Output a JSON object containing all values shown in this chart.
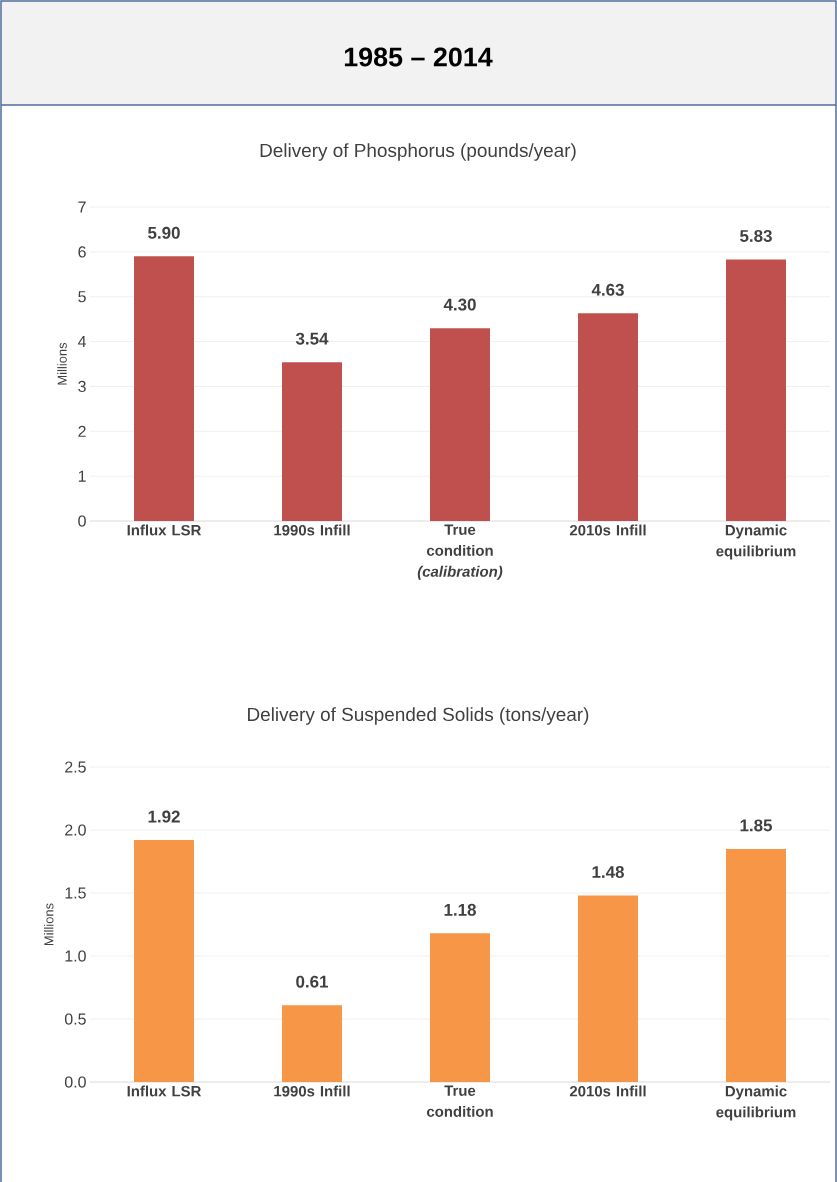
{
  "chart_data": [
    {
      "type": "bar",
      "title": "1985 – 2014",
      "subtitle": "Delivery of Phosphorus (pounds/year)",
      "ylabel": "Millions",
      "categories": [
        "Influx LSR",
        "1990s Infill",
        "True condition *(calibration)*",
        "2010s Infill",
        "Dynamic equilibrium"
      ],
      "values": [
        5.9,
        3.54,
        4.3,
        4.63,
        5.83
      ],
      "value_labels": [
        "5.90",
        "3.54",
        "4.30",
        "4.63",
        "5.83"
      ],
      "color": "#c0504d",
      "ylim": [
        0,
        7
      ],
      "yticks": [
        0,
        1,
        2,
        3,
        4,
        5,
        6,
        7
      ],
      "grid": "y"
    },
    {
      "type": "bar",
      "title": "Delivery of Suspended Solids (tons/year)",
      "ylabel": "Millions",
      "categories": [
        "Influx LSR",
        "1990s Infill",
        "True condition",
        "2010s Infill",
        "Dynamic equilibrium"
      ],
      "values": [
        1.92,
        0.61,
        1.18,
        1.48,
        1.85
      ],
      "value_labels": [
        "1.92",
        "0.61",
        "1.18",
        "1.48",
        "1.85"
      ],
      "color": "#f79646",
      "ylim": [
        0,
        2.5
      ],
      "yticks": [
        {
          "value": 0,
          "label": "0.0"
        },
        {
          "value": 0.5,
          "label": "0.5"
        },
        {
          "value": 1,
          "label": "1.0"
        },
        {
          "value": 1.5,
          "label": "1.5"
        },
        {
          "value": 2,
          "label": "2.0"
        },
        {
          "value": 2.5,
          "label": "2.5"
        }
      ],
      "grid": "y"
    }
  ]
}
